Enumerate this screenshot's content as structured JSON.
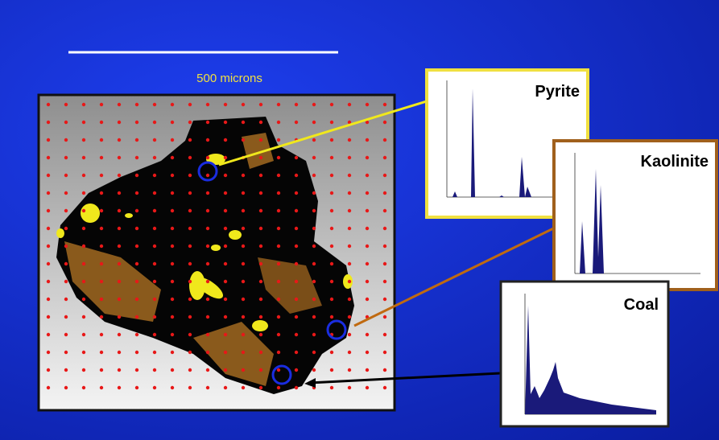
{
  "scale_label": "500 microns",
  "spectra": [
    {
      "label": "Pyrite"
    },
    {
      "label": "Kaolinite"
    },
    {
      "label": "Coal"
    }
  ]
}
